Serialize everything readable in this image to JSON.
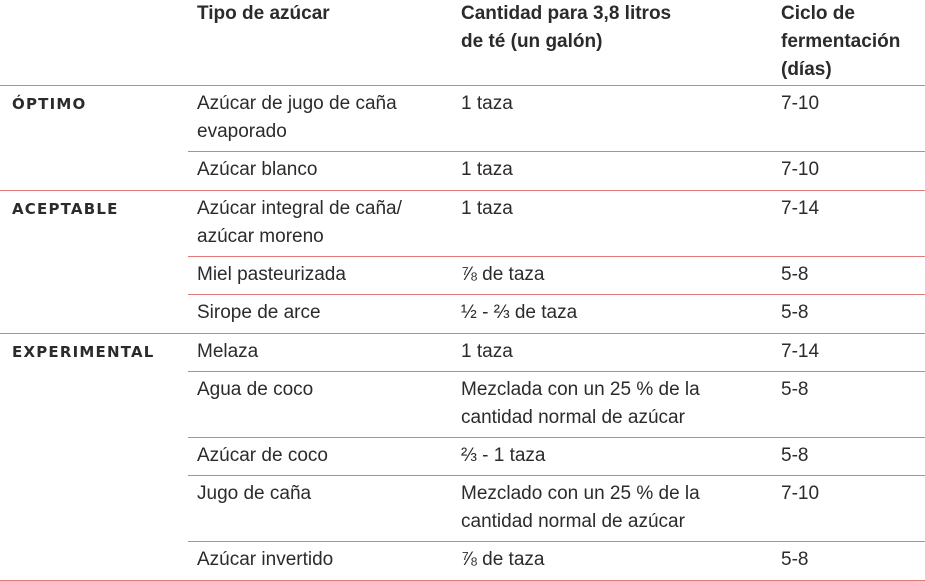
{
  "headers": {
    "type": "Tipo de azúcar",
    "quantity_line1": "Cantidad para 3,8 litros",
    "quantity_line2": "de té (un galón)",
    "cycle_line1": "Ciclo de",
    "cycle_line2": "fermentación",
    "cycle_line3": "(días)"
  },
  "groups": [
    {
      "label": "ÓPTIMO",
      "rows": [
        {
          "type": [
            "Azúcar de jugo de caña",
            "evaporado"
          ],
          "quantity": [
            "1 taza"
          ],
          "cycle": "7-10"
        },
        {
          "type": [
            "Azúcar blanco"
          ],
          "quantity": [
            "1 taza"
          ],
          "cycle": "7-10"
        }
      ]
    },
    {
      "label": "ACEPTABLE",
      "rows": [
        {
          "type": [
            "Azúcar integral de caña/",
            "azúcar moreno"
          ],
          "quantity": [
            "1 taza"
          ],
          "cycle": "7-14"
        },
        {
          "type": [
            "Miel pasteurizada"
          ],
          "quantity": [
            "⅞ de taza"
          ],
          "cycle": "5-8"
        },
        {
          "type": [
            "Sirope de arce"
          ],
          "quantity": [
            "½ - ⅔ de taza"
          ],
          "cycle": "5-8"
        }
      ]
    },
    {
      "label": "EXPERIMENTAL",
      "rows": [
        {
          "type": [
            "Melaza"
          ],
          "quantity": [
            "1 taza"
          ],
          "cycle": "7-14"
        },
        {
          "type": [
            "Agua de coco"
          ],
          "quantity": [
            "Mezclada con un 25 % de la",
            "cantidad normal de azúcar"
          ],
          "cycle": "5-8"
        },
        {
          "type": [
            "Azúcar de coco"
          ],
          "quantity": [
            "⅔ - 1 taza"
          ],
          "cycle": "5-8"
        },
        {
          "type": [
            "Jugo de caña"
          ],
          "quantity": [
            "Mezclado con un 25 % de la",
            "cantidad normal de azúcar"
          ],
          "cycle": "7-10"
        },
        {
          "type": [
            "Azúcar invertido"
          ],
          "quantity": [
            "⅞ de taza"
          ],
          "cycle": "5-8"
        }
      ]
    }
  ]
}
